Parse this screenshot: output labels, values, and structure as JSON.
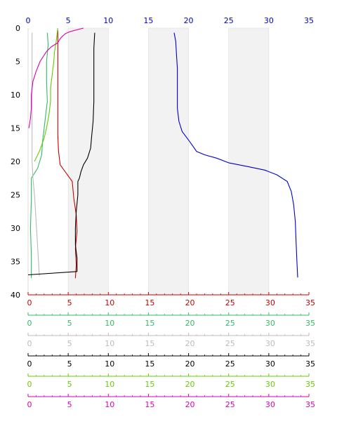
{
  "chart_data": {
    "type": "line",
    "title": "",
    "orientation": "profile-x-vs-depth",
    "grid": "alternating vertical bands",
    "y_axis": {
      "label": "",
      "range": [
        0,
        40
      ],
      "inverted": true,
      "ticks": [
        0,
        5,
        10,
        15,
        20,
        25,
        30,
        35,
        40
      ],
      "tick_labels": [
        "0",
        "5",
        "10",
        "15",
        "20",
        "25",
        "30",
        "35",
        "40"
      ],
      "color": "#000000"
    },
    "bands": [
      [
        5,
        10
      ],
      [
        15,
        20
      ],
      [
        25,
        30
      ]
    ],
    "band_color": "#f2f2f2",
    "x_axes": [
      {
        "position": "top",
        "range": [
          0,
          35
        ],
        "ticks": [
          0,
          5,
          10,
          15,
          20,
          25,
          30,
          35
        ],
        "tick_labels": [
          "0",
          "5",
          "10",
          "15",
          "20",
          "25",
          "30",
          "35"
        ],
        "color": "#0000cc"
      },
      {
        "position": "bottom",
        "range": [
          0,
          35
        ],
        "ticks": [
          0,
          5,
          10,
          15,
          20,
          25,
          30,
          35
        ],
        "tick_labels": [
          "0",
          "5",
          "10",
          "15",
          "20",
          "25",
          "30",
          "35"
        ],
        "color": "#cc0000"
      },
      {
        "position": "bottom",
        "range": [
          0,
          35
        ],
        "ticks": [
          0,
          5,
          10,
          15,
          20,
          25,
          30,
          35
        ],
        "tick_labels": [
          "0",
          "5",
          "10",
          "15",
          "20",
          "25",
          "30",
          "35"
        ],
        "color": "#33bb66"
      },
      {
        "position": "bottom",
        "range": [
          0,
          35
        ],
        "ticks": [
          0,
          5,
          10,
          15,
          20,
          25,
          30,
          35
        ],
        "tick_labels": [
          "0",
          "5",
          "10",
          "15",
          "20",
          "25",
          "30",
          "35"
        ],
        "color": "#bbbbbb"
      },
      {
        "position": "bottom",
        "range": [
          0,
          35
        ],
        "ticks": [
          0,
          5,
          10,
          15,
          20,
          25,
          30,
          35
        ],
        "tick_labels": [
          "0",
          "5",
          "10",
          "15",
          "20",
          "25",
          "30",
          "35"
        ],
        "color": "#000000"
      },
      {
        "position": "bottom",
        "range": [
          0,
          35
        ],
        "ticks": [
          0,
          5,
          10,
          15,
          20,
          25,
          30,
          35
        ],
        "tick_labels": [
          "0",
          "5",
          "10",
          "15",
          "20",
          "25",
          "30",
          "35"
        ],
        "color": "#66cc00"
      },
      {
        "position": "bottom",
        "range": [
          0,
          35
        ],
        "ticks": [
          0,
          5,
          10,
          15,
          20,
          25,
          30,
          35
        ],
        "tick_labels": [
          "0",
          "5",
          "10",
          "15",
          "20",
          "25",
          "30",
          "35"
        ],
        "color": "#dd00aa"
      }
    ],
    "series": [
      {
        "color": "#0000cc",
        "axis": 0,
        "points": [
          {
            "x": 18.2,
            "depth": 0.7
          },
          {
            "x": 18.4,
            "depth": 2.0
          },
          {
            "x": 18.5,
            "depth": 4.0
          },
          {
            "x": 18.6,
            "depth": 6.0
          },
          {
            "x": 18.6,
            "depth": 8.0
          },
          {
            "x": 18.6,
            "depth": 10.0
          },
          {
            "x": 18.6,
            "depth": 12.0
          },
          {
            "x": 18.8,
            "depth": 14.0
          },
          {
            "x": 19.2,
            "depth": 15.5
          },
          {
            "x": 20.0,
            "depth": 16.8
          },
          {
            "x": 20.6,
            "depth": 17.8
          },
          {
            "x": 21.0,
            "depth": 18.5
          },
          {
            "x": 22.0,
            "depth": 19.0
          },
          {
            "x": 23.5,
            "depth": 19.5
          },
          {
            "x": 25.0,
            "depth": 20.2
          },
          {
            "x": 27.5,
            "depth": 20.8
          },
          {
            "x": 29.5,
            "depth": 21.3
          },
          {
            "x": 31.0,
            "depth": 22.0
          },
          {
            "x": 32.3,
            "depth": 23.0
          },
          {
            "x": 32.8,
            "depth": 24.5
          },
          {
            "x": 33.1,
            "depth": 26.5
          },
          {
            "x": 33.3,
            "depth": 29.0
          },
          {
            "x": 33.4,
            "depth": 32.0
          },
          {
            "x": 33.5,
            "depth": 35.0
          },
          {
            "x": 33.6,
            "depth": 37.4
          }
        ]
      },
      {
        "color": "#cc0000",
        "axis": 1,
        "points": [
          {
            "x": 3.7,
            "depth": 0.3
          },
          {
            "x": 3.7,
            "depth": 3.0
          },
          {
            "x": 3.7,
            "depth": 7.0
          },
          {
            "x": 3.7,
            "depth": 11.0
          },
          {
            "x": 3.7,
            "depth": 16.0
          },
          {
            "x": 3.8,
            "depth": 18.5
          },
          {
            "x": 4.0,
            "depth": 20.5
          },
          {
            "x": 4.6,
            "depth": 21.5
          },
          {
            "x": 5.5,
            "depth": 23.0
          },
          {
            "x": 5.7,
            "depth": 25.5
          },
          {
            "x": 6.0,
            "depth": 28.0
          },
          {
            "x": 6.1,
            "depth": 30.5
          },
          {
            "x": 5.9,
            "depth": 33.0
          },
          {
            "x": 6.0,
            "depth": 35.5
          },
          {
            "x": 5.9,
            "depth": 37.5
          }
        ]
      },
      {
        "color": "#33bb66",
        "axis": 2,
        "points": [
          {
            "x": 2.4,
            "depth": 0.7
          },
          {
            "x": 2.5,
            "depth": 2.5
          },
          {
            "x": 2.3,
            "depth": 5.0
          },
          {
            "x": 2.3,
            "depth": 8.0
          },
          {
            "x": 2.4,
            "depth": 11.0
          },
          {
            "x": 2.2,
            "depth": 13.0
          },
          {
            "x": 2.0,
            "depth": 15.0
          },
          {
            "x": 1.8,
            "depth": 17.0
          },
          {
            "x": 1.7,
            "depth": 19.0
          },
          {
            "x": 1.2,
            "depth": 21.0
          },
          {
            "x": 0.4,
            "depth": 22.5
          },
          {
            "x": 0.4,
            "depth": 26.0
          },
          {
            "x": 0.3,
            "depth": 30.0
          },
          {
            "x": 0.4,
            "depth": 34.0
          },
          {
            "x": 0.4,
            "depth": 37.5
          }
        ]
      },
      {
        "color": "#bbbbbb",
        "axis": 3,
        "points": [
          {
            "x": 0.5,
            "depth": 0.7
          },
          {
            "x": 0.5,
            "depth": 5.0
          },
          {
            "x": 0.5,
            "depth": 10.0
          },
          {
            "x": 0.5,
            "depth": 15.0
          },
          {
            "x": 0.5,
            "depth": 20.0
          },
          {
            "x": 0.6,
            "depth": 22.5
          },
          {
            "x": 0.8,
            "depth": 25.0
          },
          {
            "x": 0.9,
            "depth": 27.0
          },
          {
            "x": 1.0,
            "depth": 29.0
          },
          {
            "x": 1.1,
            "depth": 31.0
          },
          {
            "x": 1.2,
            "depth": 33.0
          },
          {
            "x": 1.3,
            "depth": 35.0
          },
          {
            "x": 1.4,
            "depth": 37.2
          }
        ]
      },
      {
        "color": "#000000",
        "axis": 4,
        "points": [
          {
            "x": 8.3,
            "depth": 0.7
          },
          {
            "x": 8.2,
            "depth": 3.0
          },
          {
            "x": 8.2,
            "depth": 7.0
          },
          {
            "x": 8.2,
            "depth": 11.0
          },
          {
            "x": 8.1,
            "depth": 14.0
          },
          {
            "x": 7.9,
            "depth": 16.5
          },
          {
            "x": 7.8,
            "depth": 18.0
          },
          {
            "x": 7.4,
            "depth": 19.5
          },
          {
            "x": 6.9,
            "depth": 20.5
          },
          {
            "x": 6.6,
            "depth": 21.5
          },
          {
            "x": 6.4,
            "depth": 22.5
          },
          {
            "x": 6.2,
            "depth": 23.0
          },
          {
            "x": 6.2,
            "depth": 25.0
          },
          {
            "x": 6.0,
            "depth": 27.5
          },
          {
            "x": 5.9,
            "depth": 30.0
          },
          {
            "x": 5.9,
            "depth": 32.5
          },
          {
            "x": 6.1,
            "depth": 34.5
          },
          {
            "x": 6.1,
            "depth": 36.5
          },
          {
            "x": 0.0,
            "depth": 37.0
          }
        ]
      },
      {
        "color": "#66cc00",
        "axis": 5,
        "points": [
          {
            "x": 3.7,
            "depth": 0.0
          },
          {
            "x": 3.5,
            "depth": 2.0
          },
          {
            "x": 3.3,
            "depth": 3.5
          },
          {
            "x": 3.2,
            "depth": 5.0
          },
          {
            "x": 3.0,
            "depth": 7.0
          },
          {
            "x": 2.8,
            "depth": 9.0
          },
          {
            "x": 2.8,
            "depth": 11.0
          },
          {
            "x": 2.6,
            "depth": 13.0
          },
          {
            "x": 2.3,
            "depth": 15.0
          },
          {
            "x": 2.0,
            "depth": 16.5
          },
          {
            "x": 1.4,
            "depth": 18.5
          },
          {
            "x": 0.8,
            "depth": 20.0
          }
        ]
      },
      {
        "color": "#dd00aa",
        "axis": 6,
        "points": [
          {
            "x": 6.9,
            "depth": 0.0
          },
          {
            "x": 5.3,
            "depth": 0.5
          },
          {
            "x": 4.7,
            "depth": 0.8
          },
          {
            "x": 4.3,
            "depth": 1.2
          },
          {
            "x": 4.0,
            "depth": 1.6
          },
          {
            "x": 3.7,
            "depth": 2.2
          },
          {
            "x": 2.9,
            "depth": 2.8
          },
          {
            "x": 2.3,
            "depth": 3.5
          },
          {
            "x": 1.5,
            "depth": 5.0
          },
          {
            "x": 1.0,
            "depth": 6.5
          },
          {
            "x": 0.6,
            "depth": 8.0
          },
          {
            "x": 0.4,
            "depth": 10.0
          },
          {
            "x": 0.4,
            "depth": 12.0
          },
          {
            "x": 0.3,
            "depth": 13.5
          },
          {
            "x": 0.1,
            "depth": 15.0
          }
        ]
      }
    ]
  }
}
